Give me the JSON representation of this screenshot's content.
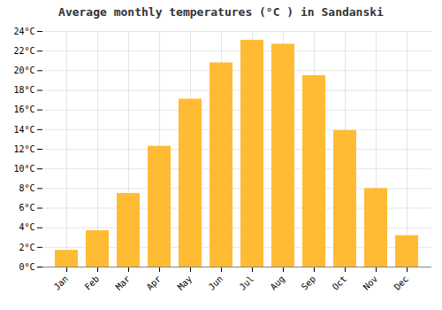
{
  "chart_data": {
    "type": "bar",
    "title": "Average monthly temperatures (°C ) in Sandanski",
    "categories": [
      "Jan",
      "Feb",
      "Mar",
      "Apr",
      "May",
      "Jun",
      "Jul",
      "Aug",
      "Sep",
      "Oct",
      "Nov",
      "Dec"
    ],
    "values": [
      1.7,
      3.7,
      7.5,
      12.3,
      17.1,
      20.8,
      23.1,
      22.7,
      19.5,
      13.9,
      8.0,
      3.2
    ],
    "color": "#FFBB33",
    "ylim": [
      0,
      24
    ],
    "yticks": [
      {
        "value": 0,
        "label": "0°C"
      },
      {
        "value": 2,
        "label": "2°C"
      },
      {
        "value": 4,
        "label": "4°C"
      },
      {
        "value": 6,
        "label": "6°C"
      },
      {
        "value": 8,
        "label": "8°C"
      },
      {
        "value": 10,
        "label": "10°C"
      },
      {
        "value": 12,
        "label": "12°C"
      },
      {
        "value": 14,
        "label": "14°C"
      },
      {
        "value": 16,
        "label": "16°C"
      },
      {
        "value": 18,
        "label": "18°C"
      },
      {
        "value": 20,
        "label": "20°C"
      },
      {
        "value": 22,
        "label": "22°C"
      },
      {
        "value": 24,
        "label": "24°C"
      }
    ],
    "grid": true
  }
}
